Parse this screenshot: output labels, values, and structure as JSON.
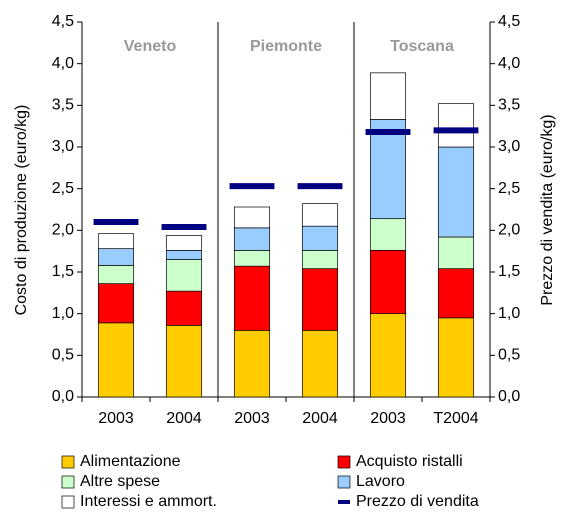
{
  "chart_data": {
    "type": "bar",
    "stacked": true,
    "y_label": "Costo di produzione (euro/kg)",
    "y2_label": "Prezzo di vendita (euro/kg)",
    "group_labels": [
      "Veneto",
      "Piemonte",
      "Toscana"
    ],
    "categories": [
      "2003",
      "2004",
      "2003",
      "2004",
      "2003",
      "T2004"
    ],
    "series": [
      {
        "name": "Alimentazione",
        "color": "#ffcc00",
        "values": [
          0.89,
          0.86,
          0.8,
          0.8,
          1.0,
          0.95
        ]
      },
      {
        "name": "Acquisto ristalli",
        "color": "#ff0000",
        "values": [
          0.47,
          0.41,
          0.77,
          0.74,
          0.76,
          0.59
        ]
      },
      {
        "name": "Altre spese",
        "color": "#ccffcc",
        "values": [
          0.22,
          0.38,
          0.19,
          0.22,
          0.38,
          0.38
        ]
      },
      {
        "name": "Lavoro",
        "color": "#99ccff",
        "values": [
          0.2,
          0.11,
          0.27,
          0.29,
          1.19,
          1.08
        ]
      },
      {
        "name": "Interessi e ammort.",
        "color": "#ffffff",
        "values": [
          0.18,
          0.18,
          0.25,
          0.27,
          0.56,
          0.52
        ]
      },
      {
        "name": "Prezzo di vendita",
        "color": "#000080",
        "axis": "y2",
        "mark": "dash",
        "values": [
          2.1,
          2.04,
          2.53,
          2.53,
          3.18,
          3.2
        ]
      }
    ],
    "ylim": [
      0,
      4.5
    ],
    "yticks": [
      {
        "value": 0,
        "label": "0,0"
      },
      {
        "value": 0.5,
        "label": "0,5"
      },
      {
        "value": 1,
        "label": "1,0"
      },
      {
        "value": 1.5,
        "label": "1,5"
      },
      {
        "value": 2,
        "label": "2,0"
      },
      {
        "value": 2.5,
        "label": "2,5"
      },
      {
        "value": 3,
        "label": "3,0"
      },
      {
        "value": 3.5,
        "label": "3,5"
      },
      {
        "value": 4,
        "label": "4,0"
      },
      {
        "value": 4.5,
        "label": "4,5"
      }
    ],
    "y2lim": [
      0,
      4.5
    ],
    "y2ticks": [
      {
        "value": 0,
        "label": "0,0"
      },
      {
        "value": 0.5,
        "label": "0,5"
      },
      {
        "value": 1,
        "label": "1,0"
      },
      {
        "value": 1.5,
        "label": "1,5"
      },
      {
        "value": 2,
        "label": "2,0"
      },
      {
        "value": 2.5,
        "label": "2,5"
      },
      {
        "value": 3,
        "label": "3,0"
      },
      {
        "value": 3.5,
        "label": "3,5"
      },
      {
        "value": 4,
        "label": "4,0"
      },
      {
        "value": 4.5,
        "label": "4,5"
      }
    ],
    "grid": false,
    "legend": "bottom"
  }
}
